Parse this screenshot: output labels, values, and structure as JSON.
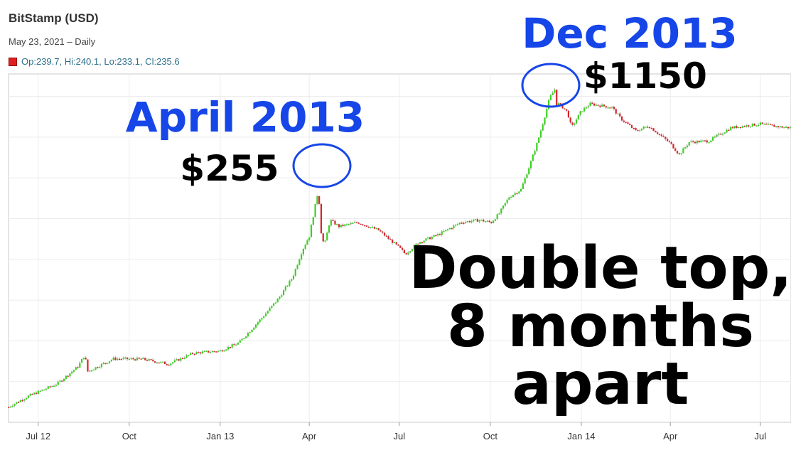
{
  "header": {
    "title": "BitStamp (USD)",
    "subtitle": "May 23, 2021 – Daily",
    "ohlc": "Op:239.7, Hi:240.1, Lo:233.1, Cl:235.6"
  },
  "colors": {
    "up": "#39d21f",
    "down": "#d8232a",
    "wick": "#b0b0b0",
    "annotation": "#1646e8"
  },
  "annotations": {
    "peak1_label": "April 2013",
    "peak1_price": "$255",
    "peak2_label": "Dec 2013",
    "peak2_price": "$1150",
    "note_line1": "Double top,",
    "note_line2": "8 months",
    "note_line3": "apart"
  },
  "chart_data": {
    "type": "line",
    "title": "BitStamp (USD)",
    "x_tick_labels": [
      "Jul 12",
      "Oct",
      "Jan 13",
      "Apr",
      "Jul",
      "Oct",
      "Jan 14",
      "Apr",
      "Jul"
    ],
    "x_ticks": [
      "2012-07-01",
      "2012-10-01",
      "2013-01-01",
      "2013-04-01",
      "2013-07-01",
      "2013-10-01",
      "2014-01-01",
      "2014-04-01",
      "2014-07-01"
    ],
    "x_range": [
      "2012-06-01",
      "2014-08-01"
    ],
    "y_scale": "log",
    "y_range": [
      4,
      1500
    ],
    "grid": true,
    "series": [
      {
        "x": [
          "2012-06-01",
          "2012-06-20",
          "2012-07-20",
          "2012-08-10",
          "2012-08-17",
          "2012-08-20",
          "2012-09-15",
          "2012-10-15",
          "2012-11-10",
          "2012-12-05",
          "2013-01-01",
          "2013-01-20",
          "2013-02-15",
          "2013-03-01",
          "2013-03-15",
          "2013-03-25",
          "2013-04-01",
          "2013-04-09",
          "2013-04-10",
          "2013-04-12",
          "2013-04-16",
          "2013-04-22",
          "2013-05-01",
          "2013-05-20",
          "2013-06-10",
          "2013-07-01",
          "2013-07-07",
          "2013-07-20",
          "2013-08-10",
          "2013-09-01",
          "2013-09-20",
          "2013-10-02",
          "2013-10-10",
          "2013-10-20",
          "2013-11-01",
          "2013-11-10",
          "2013-11-18",
          "2013-11-25",
          "2013-11-30",
          "2013-12-05",
          "2013-12-07",
          "2013-12-10",
          "2013-12-18",
          "2013-12-22",
          "2014-01-01",
          "2014-01-10",
          "2014-02-01",
          "2014-02-10",
          "2014-02-25",
          "2014-03-10",
          "2014-04-01",
          "2014-04-10",
          "2014-04-20",
          "2014-05-10",
          "2014-06-01",
          "2014-06-15",
          "2014-07-01",
          "2014-07-20",
          "2014-08-01"
        ],
        "y": [
          5.2,
          6.2,
          7.7,
          10.3,
          12.6,
          9.5,
          11.8,
          11.7,
          10.8,
          13,
          13.5,
          15.5,
          25,
          33,
          47,
          75,
          95,
          190,
          255,
          110,
          80,
          125,
          112,
          120,
          105,
          78,
          70,
          85,
          98,
          120,
          125,
          120,
          140,
          185,
          210,
          320,
          480,
          730,
          1000,
          1150,
          900,
          900,
          780,
          600,
          800,
          900,
          850,
          700,
          570,
          620,
          460,
          380,
          470,
          480,
          600,
          620,
          640,
          610,
          600
        ]
      }
    ]
  }
}
